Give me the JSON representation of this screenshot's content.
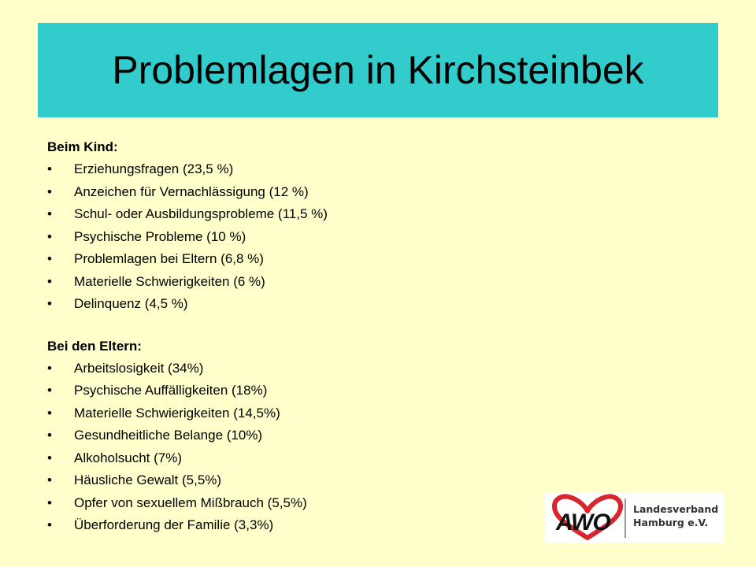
{
  "title": "Problemlagen in Kirchsteinbek",
  "section_child": {
    "heading": "Beim Kind:",
    "items": [
      "Erziehungsfragen (23,5 %)",
      "Anzeichen für Vernachlässigung (12 %)",
      "Schul- oder Ausbildungsprobleme (11,5 %)",
      "Psychische Probleme (10 %)",
      "Problemlagen bei Eltern (6,8 %)",
      "Materielle Schwierigkeiten (6 %)",
      "Delinquenz (4,5 %)"
    ]
  },
  "section_parents": {
    "heading": "Bei den Eltern:",
    "items": [
      "Arbeitslosigkeit (34%)",
      "Psychische Auffälligkeiten (18%)",
      "Materielle Schwierigkeiten (14,5%)",
      "Gesundheitliche Belange (10%)",
      "Alkoholsucht (7%)",
      "Häusliche Gewalt (5,5%)",
      "Opfer von sexuellem Mißbrauch (5,5%)",
      "Überforderung der Familie (3,3%)"
    ]
  },
  "bullet": "•",
  "logo": {
    "mark": "AWO",
    "org_line1": "Landesverband",
    "org_line2": "Hamburg e.V.",
    "heart_color": "#D7262F"
  },
  "colors": {
    "background": "#FFFFCC",
    "title_bar": "#33CCCC"
  }
}
